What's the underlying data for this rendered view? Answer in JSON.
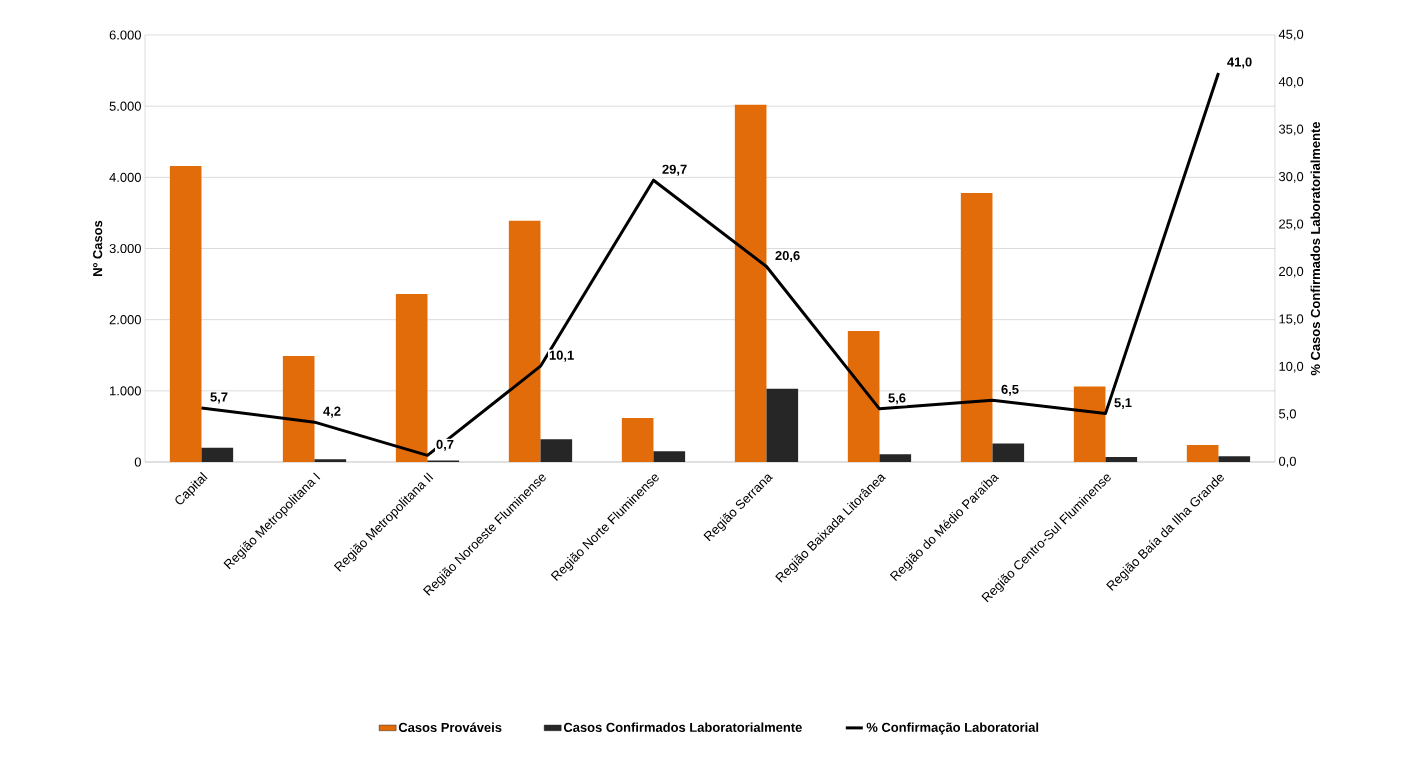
{
  "chart_data": {
    "type": "bar",
    "categories": [
      "Capital",
      "Região Metropolitana I",
      "Região Metropolitana II",
      "Região Noroeste Fluminense",
      "Região Norte Fluminense",
      "Região Serrana",
      "Região Baixada Litorânea",
      "Região do Médio Paraíba",
      "Região Centro-Sul Fluminense",
      "Região Baía da Ilha Grande"
    ],
    "ylabel": "Nº Casos",
    "y2label": "% Casos  Confirmados  Laboratorialmente",
    "ylim": [
      0,
      6000
    ],
    "yticks": [
      {
        "value": 0,
        "label": "0"
      },
      {
        "value": 1000,
        "label": "1.000"
      },
      {
        "value": 2000,
        "label": "2.000"
      },
      {
        "value": 3000,
        "label": "3.000"
      },
      {
        "value": 4000,
        "label": "4.000"
      },
      {
        "value": 5000,
        "label": "5.000"
      },
      {
        "value": 6000,
        "label": "6.000"
      }
    ],
    "y2lim": [
      0,
      45
    ],
    "y2ticks": [
      {
        "value": 0,
        "label": "0,0"
      },
      {
        "value": 5,
        "label": "5,0"
      },
      {
        "value": 10,
        "label": "10,0"
      },
      {
        "value": 15,
        "label": "15,0"
      },
      {
        "value": 20,
        "label": "20,0"
      },
      {
        "value": 25,
        "label": "25,0"
      },
      {
        "value": 30,
        "label": "30,0"
      },
      {
        "value": 35,
        "label": "35,0"
      },
      {
        "value": 40,
        "label": "40,0"
      },
      {
        "value": 45,
        "label": "45,0"
      }
    ],
    "grid": "y",
    "legend": "bottom",
    "series": [
      {
        "name": "Casos Prováveis",
        "color": "#e36c0a",
        "values": [
          4160,
          1490,
          2360,
          3390,
          620,
          5020,
          1840,
          3780,
          1060,
          240
        ]
      },
      {
        "name": "Casos Confirmados Laboratorialmente",
        "color": "#262626",
        "values": [
          200,
          40,
          20,
          320,
          150,
          1030,
          110,
          260,
          70,
          80
        ]
      },
      {
        "name": "% Confirmação Laboratorial",
        "color": "#000000",
        "type": "line",
        "axis": "y2",
        "values": [
          5.7,
          4.2,
          0.7,
          10.1,
          29.7,
          20.6,
          5.6,
          6.5,
          5.1,
          41.0
        ],
        "value_labels": [
          "5,7",
          "4,2",
          "0,7",
          "10,1",
          "29,7",
          "20,6",
          "5,6",
          "6,5",
          "5,1",
          "41,0"
        ]
      }
    ]
  }
}
